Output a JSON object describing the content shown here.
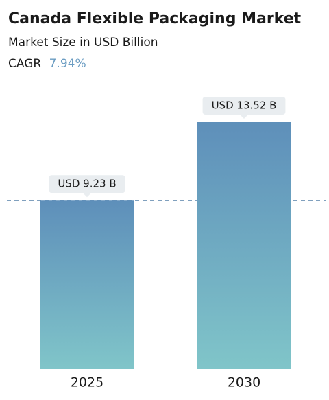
{
  "chart_data": {
    "type": "bar",
    "title": "Canada Flexible Packaging Market",
    "subtitle": "Market Size in USD Billion",
    "cagr": {
      "label": "CAGR",
      "value": "7.94%"
    },
    "categories": [
      "2025",
      "2030"
    ],
    "values": [
      9.23,
      13.52
    ],
    "value_labels": [
      "USD 9.23 B",
      "USD 13.52 B"
    ],
    "colors": {
      "top": "#5e8fba",
      "bottom": "#80c5c9"
    },
    "reference_line": true
  }
}
